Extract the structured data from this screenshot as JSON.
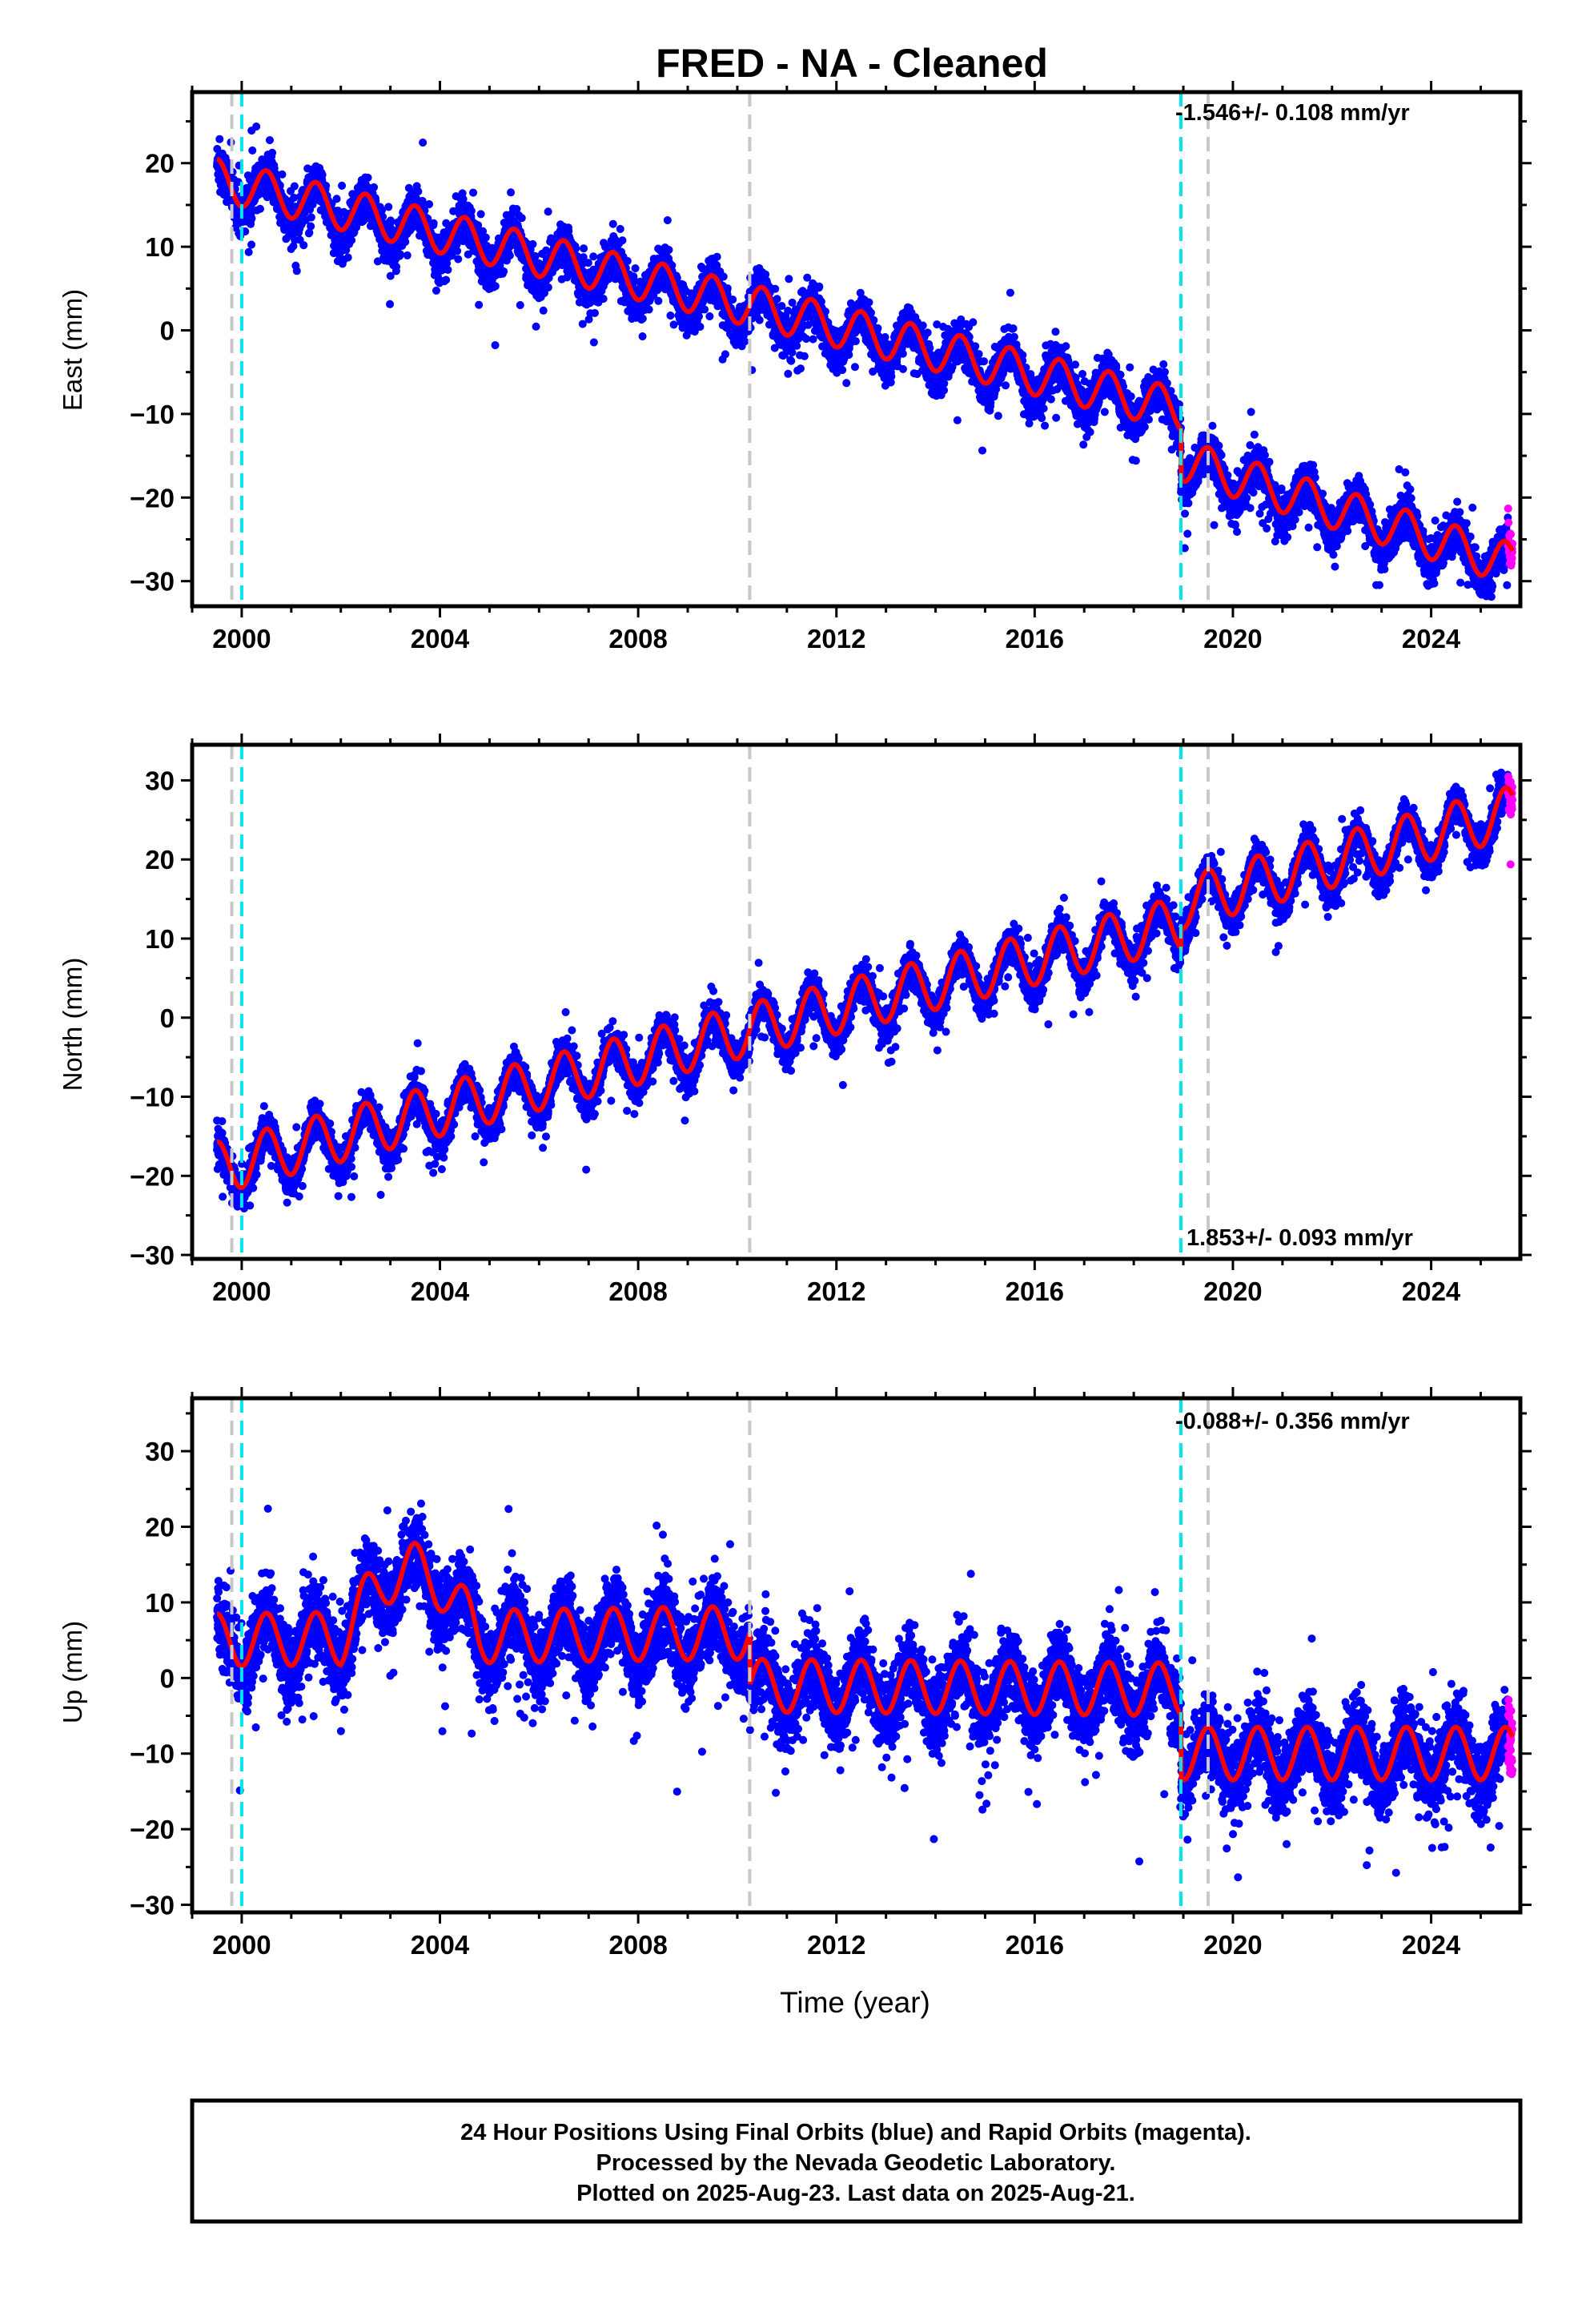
{
  "title": "FRED  - NA - Cleaned",
  "xlabel": "Time (year)",
  "footer": {
    "line1": "24 Hour Positions Using Final Orbits (blue) and Rapid Orbits (magenta).",
    "line2": "Processed by the Nevada Geodetic Laboratory.",
    "line3": "Plotted on 2025-Aug-23. Last data on 2025-Aug-21."
  },
  "colors": {
    "final_orbits": "#0000ff",
    "rapid_orbits": "#ff00ff",
    "model": "#ff0000",
    "equipment_change": "#00e5ee",
    "earthquake": "#c8c8c8"
  },
  "chart_data": [
    {
      "type": "scatter",
      "component": "East",
      "ylabel": "East (mm)",
      "rate_label": "-1.546+/- 0.108 mm/yr",
      "xlim": [
        1999.0,
        2025.8
      ],
      "ylim": [
        -33,
        28.5
      ],
      "xticks": [
        2000,
        2004,
        2008,
        2012,
        2016,
        2020,
        2024
      ],
      "yticks": [
        -30,
        -20,
        -10,
        0,
        10,
        20
      ],
      "ytick_labels": [
        "−30",
        "−20",
        "−10",
        "0",
        "10",
        "20"
      ],
      "grid": false,
      "data_start": 1999.5,
      "data_end": 2025.64,
      "rapid_start": 2025.55,
      "vlines": [
        {
          "x": 1999.8,
          "kind": "gray"
        },
        {
          "x": 2000.0,
          "kind": "cyan"
        },
        {
          "x": 2010.25,
          "kind": "gray"
        },
        {
          "x": 2018.95,
          "kind": "cyan"
        },
        {
          "x": 2019.5,
          "kind": "gray"
        }
      ],
      "model_segments": [
        {
          "x": 1999.5,
          "y": 18.0
        },
        {
          "x": 2010.25,
          "y": 3.0
        },
        {
          "x": 2018.95,
          "y": -9.5
        },
        {
          "x": 2018.96,
          "y": -15.5
        },
        {
          "x": 2025.64,
          "y": -28.0
        }
      ],
      "seasonal_amp": 2.5,
      "scatter_sd": 2.2
    },
    {
      "type": "scatter",
      "component": "North",
      "ylabel": "North (mm)",
      "rate_label": "1.853+/- 0.093 mm/yr",
      "xlim": [
        1999.0,
        2025.8
      ],
      "ylim": [
        -30.5,
        34.5
      ],
      "xticks": [
        2000,
        2004,
        2008,
        2012,
        2016,
        2020,
        2024
      ],
      "yticks": [
        -30,
        -20,
        -10,
        0,
        10,
        20,
        30
      ],
      "ytick_labels": [
        "−30",
        "−20",
        "−10",
        "0",
        "10",
        "20",
        "30"
      ],
      "grid": false,
      "data_start": 1999.5,
      "data_end": 2025.64,
      "rapid_start": 2025.55,
      "vlines": [
        {
          "x": 1999.8,
          "kind": "gray"
        },
        {
          "x": 2000.0,
          "kind": "cyan"
        },
        {
          "x": 2010.25,
          "kind": "gray"
        },
        {
          "x": 2018.95,
          "kind": "cyan"
        },
        {
          "x": 2019.5,
          "kind": "gray"
        }
      ],
      "model_segments": [
        {
          "x": 1999.5,
          "y": -19.0
        },
        {
          "x": 2010.25,
          "y": -1.5
        },
        {
          "x": 2018.95,
          "y": 12.0
        },
        {
          "x": 2018.96,
          "y": 14.5
        },
        {
          "x": 2025.64,
          "y": 26.0
        }
      ],
      "seasonal_amp": 3.3,
      "scatter_sd": 2.0
    },
    {
      "type": "scatter",
      "component": "Up",
      "ylabel": "Up (mm)",
      "rate_label": "-0.088+/- 0.356 mm/yr",
      "xlim": [
        1999.0,
        2025.8
      ],
      "ylim": [
        -31,
        37
      ],
      "xticks": [
        2000,
        2004,
        2008,
        2012,
        2016,
        2020,
        2024
      ],
      "yticks": [
        -30,
        -20,
        -10,
        0,
        10,
        20,
        30
      ],
      "ytick_labels": [
        "−30",
        "−20",
        "−10",
        "0",
        "10",
        "20",
        "30"
      ],
      "grid": false,
      "data_start": 1999.5,
      "data_end": 2025.64,
      "rapid_start": 2025.55,
      "vlines": [
        {
          "x": 1999.8,
          "kind": "gray"
        },
        {
          "x": 2000.0,
          "kind": "cyan"
        },
        {
          "x": 2010.25,
          "kind": "gray"
        },
        {
          "x": 2018.95,
          "kind": "cyan"
        },
        {
          "x": 2019.5,
          "kind": "gray"
        }
      ],
      "model_segments": [
        {
          "x": 1999.5,
          "y": 5.0
        },
        {
          "x": 2010.25,
          "y": 6.0
        },
        {
          "x": 2010.26,
          "y": -1.0
        },
        {
          "x": 2018.95,
          "y": -1.5
        },
        {
          "x": 2018.96,
          "y": -10.0
        },
        {
          "x": 2025.64,
          "y": -10.0
        }
      ],
      "bumps": [
        {
          "from": 2002.0,
          "to": 2004.8,
          "add": 9.0
        }
      ],
      "seasonal_amp": 3.5,
      "scatter_sd": 4.5
    }
  ]
}
